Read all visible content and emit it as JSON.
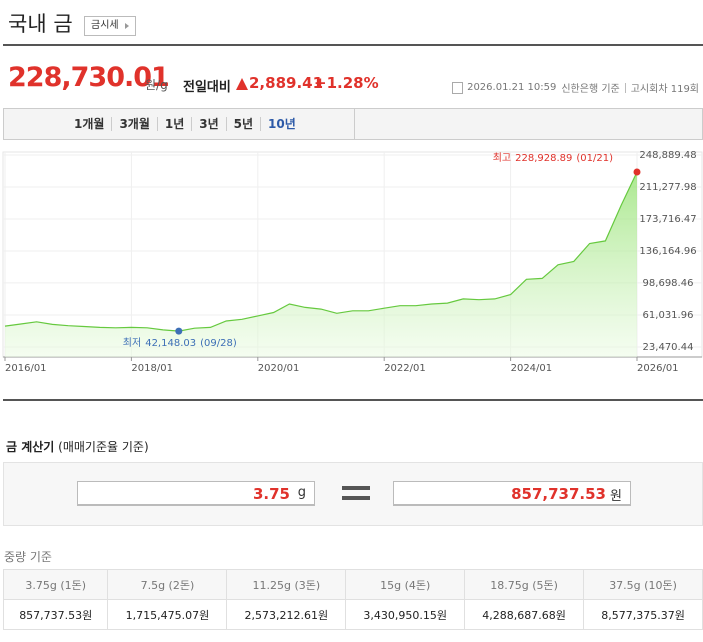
{
  "header": {
    "title": "국내 금",
    "tag": "금시세"
  },
  "price": {
    "value": "228,730.01",
    "unit": "원/g",
    "change_label": "전일대비",
    "change": "2,889.41",
    "change_pct": "+1.28%",
    "datetime": "2026.01.21 10:59",
    "source": "신한은행 기준",
    "round": "고시회차 119회"
  },
  "tabs": [
    "1개월",
    "3개월",
    "1년",
    "3년",
    "5년",
    "10년"
  ],
  "chart_data": {
    "type": "area",
    "color": "#66c93f",
    "grid": true,
    "x": [
      "2016/01",
      "2016/04",
      "2016/07",
      "2016/10",
      "2017/01",
      "2017/04",
      "2017/07",
      "2017/10",
      "2018/01",
      "2018/04",
      "2018/07",
      "2018/10",
      "2019/01",
      "2019/04",
      "2019/07",
      "2019/10",
      "2020/01",
      "2020/04",
      "2020/07",
      "2020/10",
      "2021/01",
      "2021/04",
      "2021/07",
      "2021/10",
      "2022/01",
      "2022/04",
      "2022/07",
      "2022/10",
      "2023/01",
      "2023/04",
      "2023/07",
      "2023/10",
      "2024/01",
      "2024/04",
      "2024/07",
      "2024/10",
      "2025/01",
      "2025/04",
      "2025/07",
      "2025/10",
      "2026/01"
    ],
    "values": [
      48000,
      50500,
      53000,
      50000,
      48500,
      47500,
      46500,
      46000,
      46500,
      46000,
      43500,
      42148.03,
      45500,
      46500,
      54000,
      56000,
      60000,
      64000,
      74000,
      70000,
      68000,
      63000,
      66000,
      66000,
      69000,
      72000,
      72000,
      74000,
      75000,
      80000,
      79000,
      80000,
      85000,
      103000,
      104000,
      120000,
      124000,
      145000,
      148000,
      190000,
      228928.89
    ],
    "xticks": [
      "2016/01",
      "2018/01",
      "2020/01",
      "2022/01",
      "2024/01",
      "2026/01"
    ],
    "ylim": [
      11730,
      252412
    ],
    "yticks": [
      {
        "value": 23470.44,
        "label": "23,470.44"
      },
      {
        "value": 61031.96,
        "label": "61,031.96"
      },
      {
        "value": 98698.46,
        "label": "98,698.46"
      },
      {
        "value": 136164.96,
        "label": "136,164.96"
      },
      {
        "value": 173716.47,
        "label": "173,716.47"
      },
      {
        "value": 211277.98,
        "label": "211,277.98"
      },
      {
        "value": 248889.48,
        "label": "248,889.48"
      }
    ],
    "annotations": [
      {
        "text": "최고",
        "value": 228928.89,
        "value_label": "228,928.89",
        "date": "(01/21)",
        "color": "#e0322b"
      },
      {
        "text": "최저",
        "value": 42148.03,
        "value_label": "42,148.03",
        "date": "(09/28)",
        "color": "#3d6fb6"
      }
    ]
  },
  "calculator": {
    "title": "금 계산기",
    "subtitle": "(매매기준율 기준)",
    "input": "3.75",
    "input_unit": "g",
    "result": "857,737.53",
    "result_unit": "원"
  },
  "table": {
    "title": "중량 기준",
    "headers": [
      "3.75g (1돈)",
      "7.5g (2돈)",
      "11.25g (3돈)",
      "15g (4돈)",
      "18.75g (5돈)",
      "37.5g (10돈)"
    ],
    "rows": [
      [
        "857,737.53원",
        "1,715,475.07원",
        "2,573,212.61원",
        "3,430,950.15원",
        "4,288,687.68원",
        "8,577,375.37원"
      ]
    ]
  }
}
